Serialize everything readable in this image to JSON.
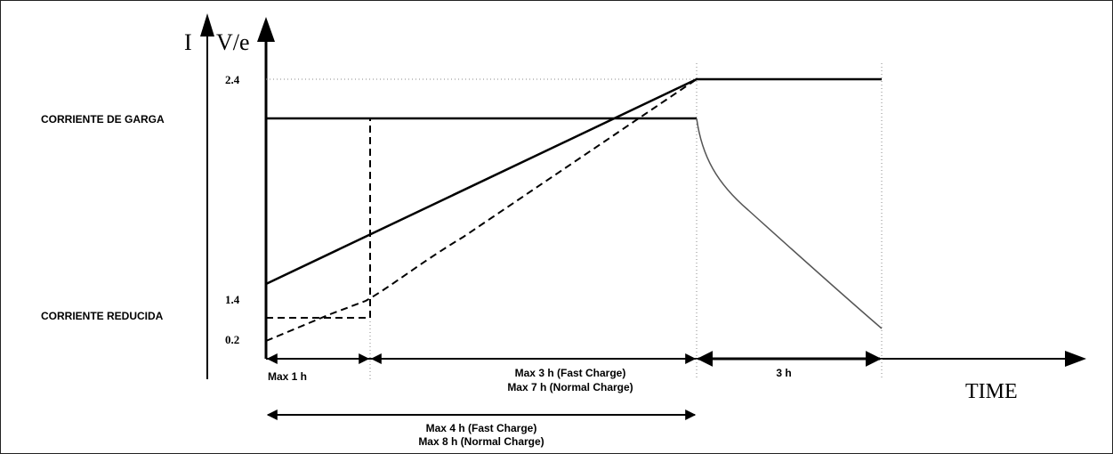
{
  "axes": {
    "current_label": "I",
    "voltage_label": "V/e",
    "time_label": "TIME"
  },
  "voltage_ticks": {
    "high": "2.4",
    "mid": "1.4",
    "low": "0.2"
  },
  "current_levels": {
    "charge": "CORRIENTE DE GARGA",
    "reduced": "CORRIENTE REDUCIDA"
  },
  "intervals": {
    "phase1": "Max 1 h",
    "phase2_fast": "Max 3 h (Fast Charge)",
    "phase2_normal": "Max 7 h (Normal Charge)",
    "phase3": "3 h",
    "total_fast": "Max 4 h (Fast Charge)",
    "total_normal": "Max 8 h (Normal Charge)"
  }
}
